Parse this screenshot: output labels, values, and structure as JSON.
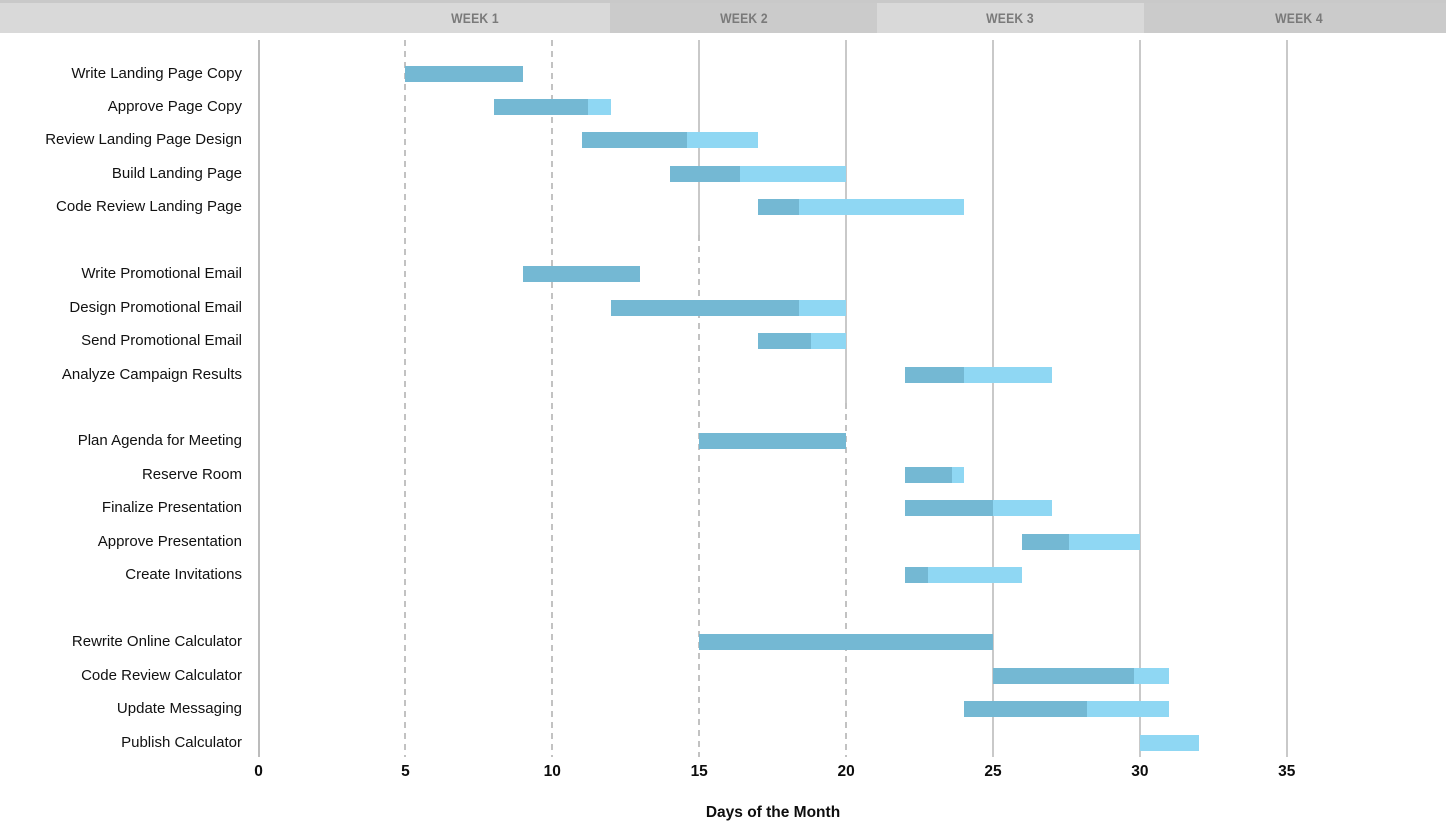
{
  "header": {
    "weeks": [
      {
        "label": "WEEK 1"
      },
      {
        "label": "WEEK 2"
      },
      {
        "label": "WEEK 3"
      },
      {
        "label": "WEEK 4"
      }
    ]
  },
  "chart_data": {
    "type": "bar",
    "subtype": "gantt",
    "title": "",
    "xlabel": "Days of the Month",
    "ylabel": "",
    "x_ticks": [
      0,
      5,
      10,
      15,
      20,
      25,
      30,
      35
    ],
    "xlim": [
      0,
      40.4
    ],
    "grid": true,
    "legend_position": "none",
    "group_sizes": [
      5,
      4,
      5,
      4
    ],
    "tasks": [
      {
        "label": "Write Landing Page Copy",
        "group": 1,
        "start": 5,
        "end": 9,
        "percent_complete": 100
      },
      {
        "label": "Approve Page Copy",
        "group": 1,
        "start": 8,
        "end": 12,
        "percent_complete": 80
      },
      {
        "label": "Review Landing Page Design",
        "group": 1,
        "start": 11,
        "end": 17,
        "percent_complete": 60
      },
      {
        "label": "Build Landing Page",
        "group": 1,
        "start": 14,
        "end": 20,
        "percent_complete": 40
      },
      {
        "label": "Code Review Landing Page",
        "group": 1,
        "start": 17,
        "end": 24,
        "percent_complete": 20
      },
      {
        "label": "Write Promotional Email",
        "group": 2,
        "start": 9,
        "end": 13,
        "percent_complete": 100
      },
      {
        "label": "Design Promotional Email",
        "group": 2,
        "start": 12,
        "end": 20,
        "percent_complete": 80
      },
      {
        "label": "Send Promotional Email",
        "group": 2,
        "start": 17,
        "end": 20,
        "percent_complete": 60
      },
      {
        "label": "Analyze Campaign Results",
        "group": 2,
        "start": 22,
        "end": 27,
        "percent_complete": 40
      },
      {
        "label": "Plan Agenda for Meeting",
        "group": 3,
        "start": 15,
        "end": 20,
        "percent_complete": 100
      },
      {
        "label": "Reserve Room",
        "group": 3,
        "start": 22,
        "end": 24,
        "percent_complete": 80
      },
      {
        "label": "Finalize Presentation",
        "group": 3,
        "start": 22,
        "end": 27,
        "percent_complete": 60
      },
      {
        "label": "Approve Presentation",
        "group": 3,
        "start": 26,
        "end": 30,
        "percent_complete": 40
      },
      {
        "label": "Create Invitations",
        "group": 3,
        "start": 22,
        "end": 26,
        "percent_complete": 20
      },
      {
        "label": "Rewrite Online Calculator",
        "group": 4,
        "start": 15,
        "end": 25,
        "percent_complete": 100
      },
      {
        "label": "Code Review Calculator",
        "group": 4,
        "start": 25,
        "end": 31,
        "percent_complete": 80
      },
      {
        "label": "Update Messaging",
        "group": 4,
        "start": 24,
        "end": 31,
        "percent_complete": 60
      },
      {
        "label": "Publish Calculator",
        "group": 4,
        "start": 30,
        "end": 32,
        "percent_complete": 0
      }
    ]
  },
  "colors": {
    "bar_complete": "#74B8D3",
    "bar_remaining": "#8FD7F3",
    "band_light": "#D9D9D9",
    "band_dark": "#CBCBCB",
    "week_text": "#7A7A7A",
    "gridline_solid": "#C9C9C9",
    "gridline_dashed": "#C2C2C2",
    "axis_line": "#BCBCBC",
    "label_text": "#111111"
  }
}
